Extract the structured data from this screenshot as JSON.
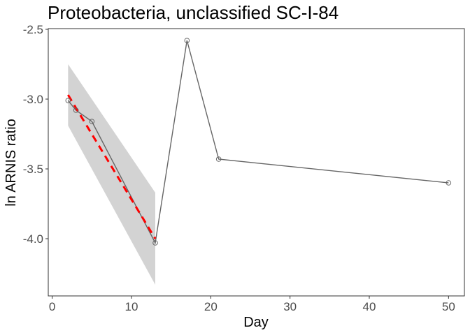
{
  "chart_data": {
    "type": "line",
    "title": "Proteobacteria, unclassified SC-I-84",
    "xlabel": "Day",
    "ylabel": "ln ARNIS ratio",
    "xlim": [
      -0.5,
      52
    ],
    "ylim": [
      -4.41,
      -2.495
    ],
    "x_ticks": [
      0,
      10,
      20,
      30,
      40,
      50
    ],
    "y_ticks": [
      -2.5,
      -3.0,
      -3.5,
      -4.0
    ],
    "x_tick_labels": [
      "0",
      "10",
      "20",
      "30",
      "40",
      "50"
    ],
    "y_tick_labels": [
      "-2.5",
      "-3.0",
      "-3.5",
      "-4.0"
    ],
    "grid": false,
    "legend": "none",
    "series": [
      {
        "x": [
          2,
          3,
          5,
          13,
          17,
          21,
          50
        ],
        "y": [
          -3.01,
          -3.08,
          -3.16,
          -4.03,
          -2.58,
          -3.43,
          -3.6
        ],
        "color": "#666666",
        "marker": "open-circle"
      }
    ],
    "fit": {
      "x": [
        2,
        13
      ],
      "y": [
        -2.97,
        -4.0
      ],
      "color": "#ff0000",
      "style": "dashed",
      "ci_lower": [
        -3.19,
        -4.33
      ],
      "ci_upper": [
        -2.75,
        -3.67
      ],
      "ci_color": "#d3d3d3"
    }
  }
}
